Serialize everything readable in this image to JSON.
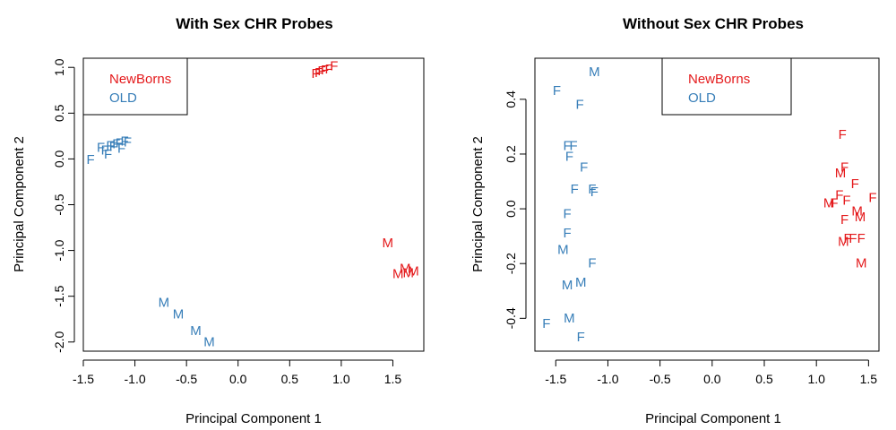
{
  "colors": {
    "newborns": "#e41a1c",
    "old": "#377eb8"
  },
  "chart_data": [
    {
      "type": "scatter",
      "title": "With Sex CHR Probes",
      "xlabel": "Principal Component 1",
      "ylabel": "Principal Component 2",
      "xlim": [
        -1.5,
        1.8
      ],
      "ylim": [
        -2.1,
        1.1
      ],
      "xticks": [
        -1.5,
        -1.0,
        -0.5,
        0.0,
        0.5,
        1.0,
        1.5
      ],
      "xtick_labels": [
        "-1.5",
        "-1.0",
        "-0.5",
        "0.0",
        "0.5",
        "1.0",
        "1.5"
      ],
      "yticks": [
        -2.0,
        -1.5,
        -1.0,
        -0.5,
        0.0,
        0.5,
        1.0
      ],
      "ytick_labels": [
        "-2.0",
        "-1.5",
        "-1.0",
        "-0.5",
        "0.0",
        "0.5",
        "1.0"
      ],
      "legend_position": "top-left",
      "series": [
        {
          "name": "NewBorns",
          "color": "#e41a1c",
          "points": [
            {
              "x": 0.75,
              "y": 0.93,
              "label": "F"
            },
            {
              "x": 0.78,
              "y": 0.94,
              "label": "F"
            },
            {
              "x": 0.81,
              "y": 0.96,
              "label": "F"
            },
            {
              "x": 0.84,
              "y": 0.97,
              "label": "F"
            },
            {
              "x": 0.88,
              "y": 0.98,
              "label": "F"
            },
            {
              "x": 0.93,
              "y": 1.01,
              "label": "F"
            },
            {
              "x": 1.45,
              "y": -0.92,
              "label": "M"
            },
            {
              "x": 1.55,
              "y": -1.26,
              "label": "M"
            },
            {
              "x": 1.62,
              "y": -1.2,
              "label": "M"
            },
            {
              "x": 1.65,
              "y": -1.25,
              "label": "M"
            },
            {
              "x": 1.7,
              "y": -1.23,
              "label": "M"
            }
          ]
        },
        {
          "name": "OLD",
          "color": "#377eb8",
          "points": [
            {
              "x": -1.43,
              "y": -0.01,
              "label": "F"
            },
            {
              "x": -1.33,
              "y": 0.12,
              "label": "F"
            },
            {
              "x": -1.29,
              "y": 0.09,
              "label": "F"
            },
            {
              "x": -1.26,
              "y": 0.05,
              "label": "F"
            },
            {
              "x": -1.24,
              "y": 0.14,
              "label": "F"
            },
            {
              "x": -1.21,
              "y": 0.13,
              "label": "F"
            },
            {
              "x": -1.18,
              "y": 0.16,
              "label": "F"
            },
            {
              "x": -1.15,
              "y": 0.17,
              "label": "F"
            },
            {
              "x": -1.13,
              "y": 0.11,
              "label": "F"
            },
            {
              "x": -1.1,
              "y": 0.19,
              "label": "F"
            },
            {
              "x": -1.07,
              "y": 0.18,
              "label": "F"
            },
            {
              "x": -0.72,
              "y": -1.57,
              "label": "M"
            },
            {
              "x": -0.58,
              "y": -1.7,
              "label": "M"
            },
            {
              "x": -0.41,
              "y": -1.88,
              "label": "M"
            },
            {
              "x": -0.28,
              "y": -2.0,
              "label": "M"
            }
          ]
        }
      ]
    },
    {
      "type": "scatter",
      "title": "Without Sex CHR Probes",
      "xlabel": "Principal Component 1",
      "ylabel": "Principal Component 2",
      "xlim": [
        -1.7,
        1.6
      ],
      "ylim": [
        -0.52,
        0.55
      ],
      "xticks": [
        -1.5,
        -1.0,
        -0.5,
        0.0,
        0.5,
        1.0,
        1.5
      ],
      "xtick_labels": [
        "-1.5",
        "-1.0",
        "-0.5",
        "0.0",
        "0.5",
        "1.0",
        "1.5"
      ],
      "yticks": [
        -0.4,
        -0.2,
        0.0,
        0.2,
        0.4
      ],
      "ytick_labels": [
        "-0.4",
        "-0.2",
        "0.0",
        "0.2",
        "0.4"
      ],
      "legend_position": "top-center",
      "series": [
        {
          "name": "NewBorns",
          "color": "#e41a1c",
          "points": [
            {
              "x": 1.25,
              "y": 0.27,
              "label": "F"
            },
            {
              "x": 1.27,
              "y": 0.15,
              "label": "F"
            },
            {
              "x": 1.23,
              "y": 0.13,
              "label": "M"
            },
            {
              "x": 1.37,
              "y": 0.09,
              "label": "F"
            },
            {
              "x": 1.54,
              "y": 0.04,
              "label": "F"
            },
            {
              "x": 1.22,
              "y": 0.05,
              "label": "F"
            },
            {
              "x": 1.29,
              "y": 0.03,
              "label": "F"
            },
            {
              "x": 1.12,
              "y": 0.02,
              "label": "M"
            },
            {
              "x": 1.17,
              "y": 0.02,
              "label": "F"
            },
            {
              "x": 1.39,
              "y": -0.01,
              "label": "M"
            },
            {
              "x": 1.27,
              "y": -0.04,
              "label": "F"
            },
            {
              "x": 1.42,
              "y": -0.03,
              "label": "M"
            },
            {
              "x": 1.3,
              "y": -0.11,
              "label": "F"
            },
            {
              "x": 1.26,
              "y": -0.12,
              "label": "M"
            },
            {
              "x": 1.35,
              "y": -0.11,
              "label": "F"
            },
            {
              "x": 1.43,
              "y": -0.11,
              "label": "F"
            },
            {
              "x": 1.43,
              "y": -0.2,
              "label": "M"
            }
          ]
        },
        {
          "name": "OLD",
          "color": "#377eb8",
          "points": [
            {
              "x": -1.13,
              "y": 0.5,
              "label": "M"
            },
            {
              "x": -1.49,
              "y": 0.43,
              "label": "F"
            },
            {
              "x": -1.27,
              "y": 0.38,
              "label": "F"
            },
            {
              "x": -1.39,
              "y": 0.23,
              "label": "F"
            },
            {
              "x": -1.33,
              "y": 0.23,
              "label": "F"
            },
            {
              "x": -1.37,
              "y": 0.19,
              "label": "F"
            },
            {
              "x": -1.23,
              "y": 0.15,
              "label": "F"
            },
            {
              "x": -1.32,
              "y": 0.07,
              "label": "F"
            },
            {
              "x": -1.15,
              "y": 0.07,
              "label": "F"
            },
            {
              "x": -1.13,
              "y": 0.06,
              "label": "F"
            },
            {
              "x": -1.39,
              "y": -0.02,
              "label": "F"
            },
            {
              "x": -1.39,
              "y": -0.09,
              "label": "F"
            },
            {
              "x": -1.43,
              "y": -0.15,
              "label": "M"
            },
            {
              "x": -1.15,
              "y": -0.2,
              "label": "F"
            },
            {
              "x": -1.39,
              "y": -0.28,
              "label": "M"
            },
            {
              "x": -1.26,
              "y": -0.27,
              "label": "M"
            },
            {
              "x": -1.59,
              "y": -0.42,
              "label": "F"
            },
            {
              "x": -1.37,
              "y": -0.4,
              "label": "M"
            },
            {
              "x": -1.26,
              "y": -0.47,
              "label": "F"
            }
          ]
        }
      ]
    }
  ]
}
